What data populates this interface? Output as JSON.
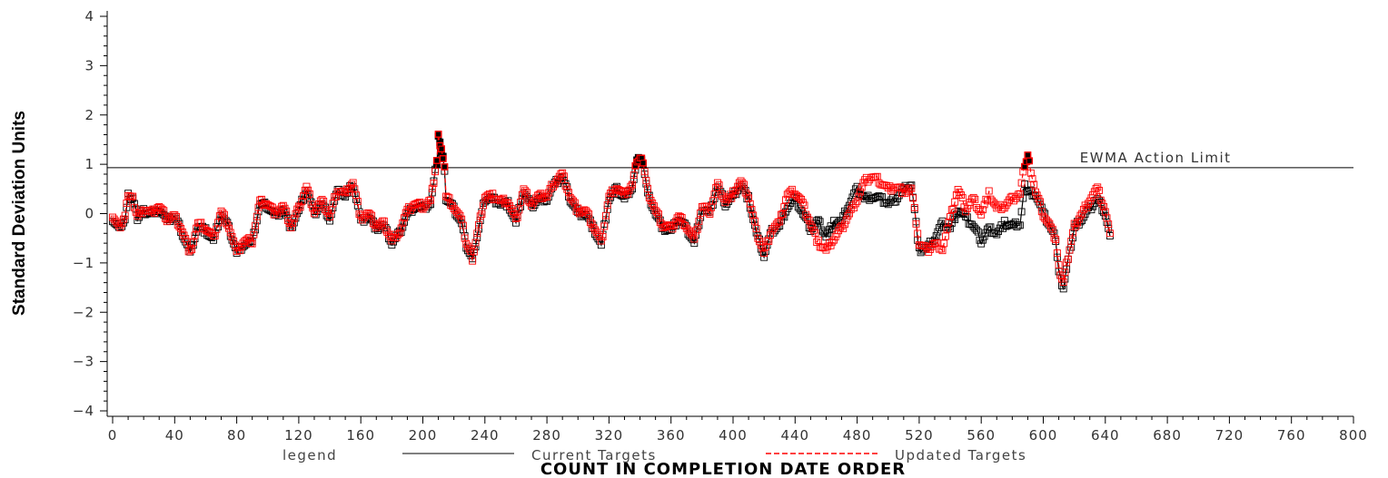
{
  "chart_data": {
    "type": "line",
    "title": "",
    "xlabel": "COUNT IN COMPLETION DATE ORDER",
    "ylabel": "Standard Deviation Units",
    "xlim": [
      0,
      800
    ],
    "ylim": [
      -4,
      4
    ],
    "x_ticks": [
      "0",
      "40",
      "80",
      "120",
      "160",
      "200",
      "240",
      "280",
      "320",
      "360",
      "400",
      "440",
      "480",
      "520",
      "560",
      "600",
      "640",
      "680",
      "720",
      "760",
      "800"
    ],
    "y_ticks": [
      "4",
      "3",
      "2",
      "1",
      "0",
      "−1",
      "−2",
      "−3",
      "−4"
    ],
    "grid": false,
    "reference_line": {
      "value": 0.93,
      "label": "EWMA Action Limit"
    },
    "legend": {
      "title": "legend",
      "position": "bottom",
      "entries": [
        "Current Targets",
        "Updated Targets"
      ]
    },
    "marker": "square",
    "series": [
      {
        "name": "Current Targets",
        "color": "#000000",
        "dash": "solid",
        "points": [
          [
            0,
            -0.1
          ],
          [
            4,
            -0.3
          ],
          [
            8,
            -0.1
          ],
          [
            10,
            0.35
          ],
          [
            13,
            0.3
          ],
          [
            16,
            -0.1
          ],
          [
            20,
            0.05
          ],
          [
            25,
            0.0
          ],
          [
            30,
            0.1
          ],
          [
            35,
            -0.15
          ],
          [
            40,
            -0.05
          ],
          [
            45,
            -0.4
          ],
          [
            50,
            -0.8
          ],
          [
            55,
            -0.25
          ],
          [
            60,
            -0.35
          ],
          [
            65,
            -0.55
          ],
          [
            70,
            0.0
          ],
          [
            75,
            -0.3
          ],
          [
            80,
            -0.8
          ],
          [
            85,
            -0.6
          ],
          [
            90,
            -0.6
          ],
          [
            95,
            0.2
          ],
          [
            100,
            0.15
          ],
          [
            105,
            -0.05
          ],
          [
            110,
            0.1
          ],
          [
            115,
            -0.3
          ],
          [
            120,
            0.05
          ],
          [
            125,
            0.5
          ],
          [
            130,
            0.0
          ],
          [
            135,
            0.2
          ],
          [
            140,
            -0.1
          ],
          [
            145,
            0.45
          ],
          [
            150,
            0.35
          ],
          [
            155,
            0.6
          ],
          [
            160,
            -0.15
          ],
          [
            165,
            -0.05
          ],
          [
            170,
            -0.3
          ],
          [
            175,
            -0.25
          ],
          [
            180,
            -0.6
          ],
          [
            185,
            -0.4
          ],
          [
            190,
            0.0
          ],
          [
            195,
            0.15
          ],
          [
            200,
            0.1
          ],
          [
            205,
            0.2
          ],
          [
            209,
            1.05
          ],
          [
            210,
            1.55
          ],
          [
            212,
            1.25
          ],
          [
            213,
            1.1
          ],
          [
            214,
            0.85
          ],
          [
            215,
            0.3
          ],
          [
            220,
            0.1
          ],
          [
            225,
            -0.2
          ],
          [
            228,
            -0.65
          ],
          [
            232,
            -0.95
          ],
          [
            236,
            -0.3
          ],
          [
            240,
            0.3
          ],
          [
            245,
            0.3
          ],
          [
            250,
            0.2
          ],
          [
            255,
            0.2
          ],
          [
            260,
            -0.2
          ],
          [
            265,
            0.45
          ],
          [
            270,
            0.15
          ],
          [
            275,
            0.3
          ],
          [
            280,
            0.3
          ],
          [
            285,
            0.6
          ],
          [
            290,
            0.75
          ],
          [
            295,
            0.3
          ],
          [
            300,
            0.0
          ],
          [
            305,
            0.0
          ],
          [
            310,
            -0.3
          ],
          [
            315,
            -0.65
          ],
          [
            320,
            0.3
          ],
          [
            325,
            0.5
          ],
          [
            330,
            0.3
          ],
          [
            335,
            0.55
          ],
          [
            338,
            1.05
          ],
          [
            340,
            1.1
          ],
          [
            342,
            1.05
          ],
          [
            345,
            0.4
          ],
          [
            350,
            0.0
          ],
          [
            355,
            -0.3
          ],
          [
            360,
            -0.35
          ],
          [
            365,
            -0.1
          ],
          [
            370,
            -0.3
          ],
          [
            375,
            -0.6
          ],
          [
            380,
            0.1
          ],
          [
            385,
            0.0
          ],
          [
            390,
            0.55
          ],
          [
            395,
            0.2
          ],
          [
            400,
            0.35
          ],
          [
            405,
            0.6
          ],
          [
            410,
            0.3
          ],
          [
            415,
            -0.4
          ],
          [
            420,
            -0.85
          ],
          [
            425,
            -0.35
          ],
          [
            430,
            -0.25
          ],
          [
            435,
            0.15
          ],
          [
            440,
            0.3
          ],
          [
            445,
            0.0
          ],
          [
            450,
            -0.3
          ],
          [
            455,
            -0.15
          ],
          [
            460,
            -0.45
          ],
          [
            465,
            -0.2
          ],
          [
            470,
            -0.15
          ],
          [
            475,
            0.2
          ],
          [
            480,
            0.5
          ],
          [
            485,
            0.3
          ],
          [
            490,
            0.35
          ],
          [
            495,
            0.3
          ],
          [
            500,
            0.2
          ],
          [
            505,
            0.3
          ],
          [
            510,
            0.5
          ],
          [
            515,
            0.6
          ],
          [
            520,
            -0.75
          ],
          [
            525,
            -0.7
          ],
          [
            530,
            -0.5
          ],
          [
            535,
            -0.2
          ],
          [
            540,
            -0.3
          ],
          [
            545,
            0.1
          ],
          [
            550,
            -0.1
          ],
          [
            555,
            -0.25
          ],
          [
            560,
            -0.55
          ],
          [
            565,
            -0.3
          ],
          [
            570,
            -0.4
          ],
          [
            575,
            -0.2
          ],
          [
            580,
            -0.25
          ],
          [
            585,
            -0.2
          ],
          [
            588,
            0.55
          ],
          [
            590,
            0.45
          ],
          [
            595,
            0.4
          ],
          [
            600,
            0.0
          ],
          [
            605,
            -0.3
          ],
          [
            608,
            -0.5
          ],
          [
            610,
            -1.2
          ],
          [
            613,
            -1.5
          ],
          [
            617,
            -0.8
          ],
          [
            620,
            -0.3
          ],
          [
            625,
            -0.1
          ],
          [
            630,
            0.1
          ],
          [
            635,
            0.3
          ],
          [
            640,
            0.0
          ],
          [
            643,
            -0.45
          ]
        ]
      },
      {
        "name": "Updated Targets",
        "color": "#ff0000",
        "dash": "dashed",
        "points": [
          [
            0,
            -0.05
          ],
          [
            4,
            -0.3
          ],
          [
            8,
            -0.05
          ],
          [
            10,
            0.4
          ],
          [
            13,
            0.3
          ],
          [
            16,
            -0.05
          ],
          [
            20,
            0.1
          ],
          [
            25,
            0.0
          ],
          [
            30,
            0.15
          ],
          [
            35,
            -0.1
          ],
          [
            40,
            -0.05
          ],
          [
            45,
            -0.35
          ],
          [
            50,
            -0.8
          ],
          [
            55,
            -0.2
          ],
          [
            60,
            -0.3
          ],
          [
            65,
            -0.5
          ],
          [
            70,
            0.05
          ],
          [
            75,
            -0.25
          ],
          [
            80,
            -0.8
          ],
          [
            85,
            -0.55
          ],
          [
            90,
            -0.55
          ],
          [
            95,
            0.25
          ],
          [
            100,
            0.2
          ],
          [
            105,
            0.0
          ],
          [
            110,
            0.15
          ],
          [
            115,
            -0.25
          ],
          [
            120,
            0.1
          ],
          [
            125,
            0.55
          ],
          [
            130,
            0.05
          ],
          [
            135,
            0.25
          ],
          [
            140,
            -0.05
          ],
          [
            145,
            0.5
          ],
          [
            150,
            0.4
          ],
          [
            155,
            0.65
          ],
          [
            160,
            -0.1
          ],
          [
            165,
            0.0
          ],
          [
            170,
            -0.25
          ],
          [
            175,
            -0.2
          ],
          [
            180,
            -0.55
          ],
          [
            185,
            -0.35
          ],
          [
            190,
            0.05
          ],
          [
            195,
            0.2
          ],
          [
            200,
            0.15
          ],
          [
            205,
            0.25
          ],
          [
            209,
            1.1
          ],
          [
            210,
            1.55
          ],
          [
            212,
            1.3
          ],
          [
            213,
            1.15
          ],
          [
            214,
            0.9
          ],
          [
            215,
            0.35
          ],
          [
            220,
            0.15
          ],
          [
            225,
            -0.15
          ],
          [
            228,
            -0.6
          ],
          [
            232,
            -0.9
          ],
          [
            236,
            -0.25
          ],
          [
            240,
            0.35
          ],
          [
            245,
            0.35
          ],
          [
            250,
            0.25
          ],
          [
            255,
            0.25
          ],
          [
            260,
            -0.15
          ],
          [
            265,
            0.5
          ],
          [
            270,
            0.2
          ],
          [
            275,
            0.35
          ],
          [
            280,
            0.35
          ],
          [
            285,
            0.65
          ],
          [
            290,
            0.8
          ],
          [
            295,
            0.35
          ],
          [
            300,
            0.05
          ],
          [
            305,
            0.05
          ],
          [
            310,
            -0.25
          ],
          [
            315,
            -0.6
          ],
          [
            320,
            0.35
          ],
          [
            325,
            0.55
          ],
          [
            330,
            0.35
          ],
          [
            335,
            0.6
          ],
          [
            338,
            1.1
          ],
          [
            340,
            1.1
          ],
          [
            342,
            1.05
          ],
          [
            345,
            0.45
          ],
          [
            350,
            0.05
          ],
          [
            355,
            -0.25
          ],
          [
            360,
            -0.3
          ],
          [
            365,
            -0.05
          ],
          [
            370,
            -0.25
          ],
          [
            375,
            -0.55
          ],
          [
            380,
            0.15
          ],
          [
            385,
            0.05
          ],
          [
            390,
            0.6
          ],
          [
            395,
            0.25
          ],
          [
            400,
            0.4
          ],
          [
            405,
            0.65
          ],
          [
            410,
            0.35
          ],
          [
            415,
            -0.35
          ],
          [
            420,
            -0.8
          ],
          [
            425,
            -0.3
          ],
          [
            430,
            -0.2
          ],
          [
            435,
            0.4
          ],
          [
            440,
            0.45
          ],
          [
            445,
            0.2
          ],
          [
            450,
            -0.2
          ],
          [
            455,
            -0.6
          ],
          [
            460,
            -0.75
          ],
          [
            465,
            -0.5
          ],
          [
            470,
            -0.3
          ],
          [
            475,
            0.0
          ],
          [
            480,
            0.3
          ],
          [
            485,
            0.65
          ],
          [
            490,
            0.75
          ],
          [
            495,
            0.65
          ],
          [
            500,
            0.5
          ],
          [
            505,
            0.55
          ],
          [
            510,
            0.45
          ],
          [
            515,
            0.5
          ],
          [
            520,
            -0.6
          ],
          [
            525,
            -0.75
          ],
          [
            530,
            -0.6
          ],
          [
            535,
            -0.7
          ],
          [
            540,
            -0.1
          ],
          [
            545,
            0.5
          ],
          [
            550,
            0.1
          ],
          [
            555,
            0.3
          ],
          [
            560,
            0.0
          ],
          [
            565,
            0.4
          ],
          [
            570,
            0.1
          ],
          [
            575,
            0.15
          ],
          [
            580,
            0.3
          ],
          [
            585,
            0.4
          ],
          [
            588,
            1.0
          ],
          [
            590,
            1.15
          ],
          [
            595,
            0.45
          ],
          [
            600,
            0.0
          ],
          [
            605,
            -0.3
          ],
          [
            608,
            -0.5
          ],
          [
            610,
            -1.1
          ],
          [
            613,
            -1.4
          ],
          [
            617,
            -0.7
          ],
          [
            620,
            -0.25
          ],
          [
            625,
            0.0
          ],
          [
            630,
            0.3
          ],
          [
            635,
            0.5
          ],
          [
            640,
            0.05
          ],
          [
            643,
            -0.4
          ]
        ]
      }
    ]
  }
}
